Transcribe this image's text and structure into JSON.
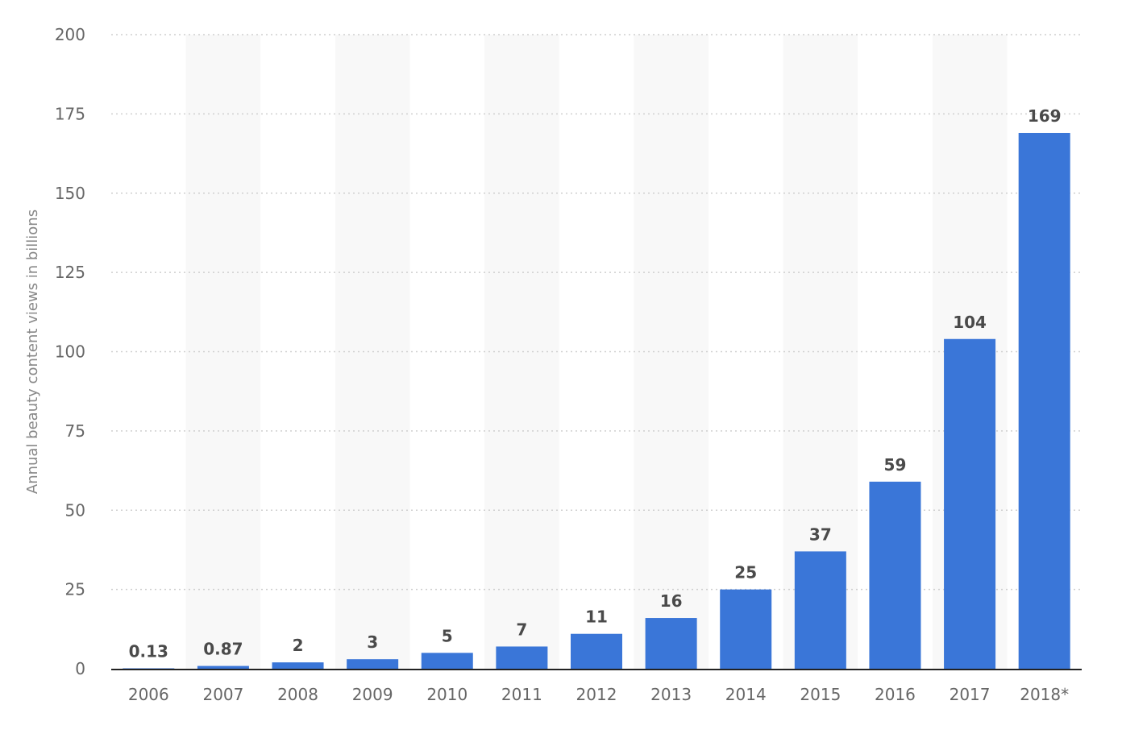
{
  "chart_data": {
    "type": "bar",
    "title": "",
    "xlabel": "",
    "ylabel": "Annual beauty content views in billions",
    "categories": [
      "2006",
      "2007",
      "2008",
      "2009",
      "2010",
      "2011",
      "2012",
      "2013",
      "2014",
      "2015",
      "2016",
      "2017",
      "2018*"
    ],
    "values": [
      0.13,
      0.87,
      2,
      3,
      5,
      7,
      11,
      16,
      25,
      37,
      59,
      104,
      169
    ],
    "value_labels": [
      "0.13",
      "0.87",
      "2",
      "3",
      "5",
      "7",
      "11",
      "16",
      "25",
      "37",
      "59",
      "104",
      "169"
    ],
    "ylim": [
      0,
      200
    ],
    "yticks": [
      0,
      25,
      50,
      75,
      100,
      125,
      150,
      175,
      200
    ],
    "grid": true,
    "grid_style": "dotted",
    "alternating_column_bands": true,
    "legend": "none",
    "colors": {
      "bar": "#3a76d8",
      "band": "#f8f8f8",
      "grid": "#cfcfcf",
      "axis": "#222222",
      "tick_text": "#666666",
      "data_label_text": "#4a4a4a",
      "axis_title_text": "#888888"
    }
  }
}
